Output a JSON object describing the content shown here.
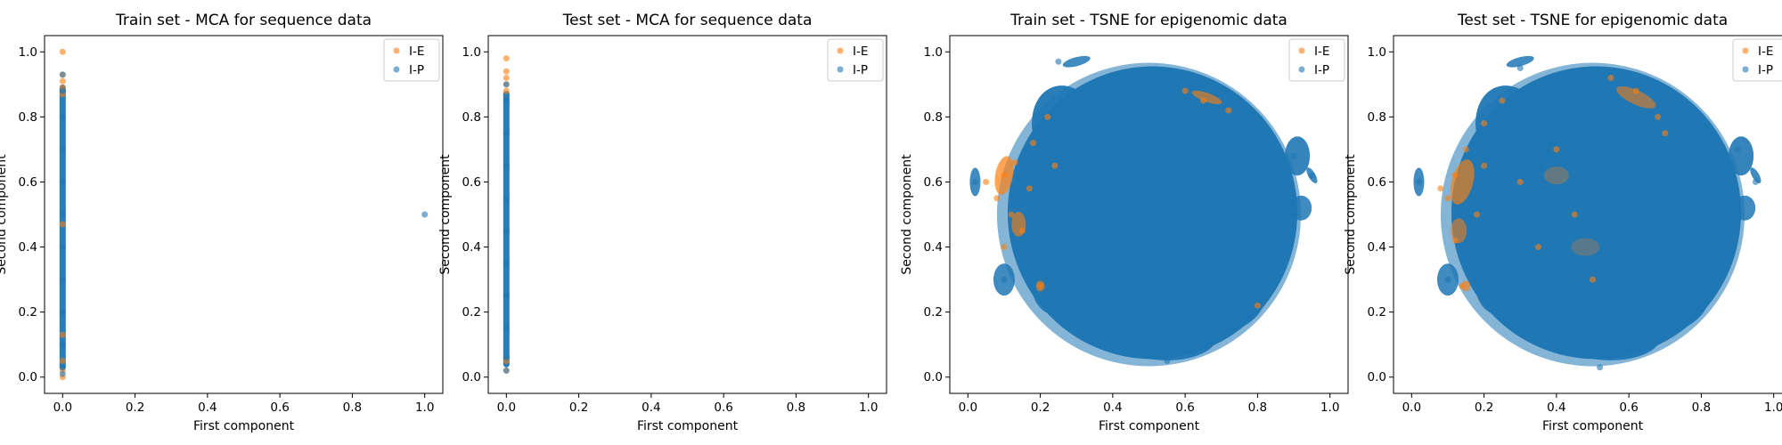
{
  "colors": {
    "I-E": "#ff7f0e",
    "I-P": "#1f77b4"
  },
  "chart_data": [
    {
      "type": "scatter",
      "title": "Train set - MCA for sequence data",
      "xlabel": "First component",
      "ylabel": "Second component",
      "xlim": [
        -0.05,
        1.05
      ],
      "ylim": [
        -0.05,
        1.05
      ],
      "xticks": [
        "0.0",
        "0.2",
        "0.4",
        "0.6",
        "0.8",
        "1.0"
      ],
      "yticks": [
        "0.0",
        "0.2",
        "0.4",
        "0.6",
        "0.8",
        "1.0"
      ],
      "legend": "top-right",
      "series": [
        {
          "name": "I-E",
          "color": "#ff7f0e",
          "points": [
            [
              0.0,
              1.0
            ],
            [
              0.0,
              0.93
            ],
            [
              0.0,
              0.91
            ],
            [
              0.0,
              0.89
            ],
            [
              0.0,
              0.87
            ],
            [
              0.0,
              0.47
            ],
            [
              0.0,
              0.13
            ],
            [
              0.0,
              0.05
            ],
            [
              0.0,
              0.02
            ],
            [
              0.0,
              0.0
            ]
          ]
        },
        {
          "name": "I-P",
          "color": "#1f77b4",
          "points": [
            [
              0.0,
              0.93
            ],
            [
              0.0,
              0.88
            ],
            [
              0.0,
              0.8
            ],
            [
              0.0,
              0.7
            ],
            [
              0.0,
              0.6
            ],
            [
              0.0,
              0.5
            ],
            [
              0.0,
              0.4
            ],
            [
              0.0,
              0.3
            ],
            [
              0.0,
              0.2
            ],
            [
              0.0,
              0.1
            ],
            [
              0.0,
              0.03
            ],
            [
              0.0,
              0.01
            ],
            [
              1.0,
              0.5
            ]
          ]
        }
      ]
    },
    {
      "type": "scatter",
      "title": "Test set - MCA for sequence data",
      "xlabel": "First component",
      "ylabel": "Second component",
      "xlim": [
        -0.05,
        1.05
      ],
      "ylim": [
        -0.05,
        1.05
      ],
      "xticks": [
        "0.0",
        "0.2",
        "0.4",
        "0.6",
        "0.8",
        "1.0"
      ],
      "yticks": [
        "0.0",
        "0.2",
        "0.4",
        "0.6",
        "0.8",
        "1.0"
      ],
      "legend": "top-right",
      "series": [
        {
          "name": "I-E",
          "color": "#ff7f0e",
          "points": [
            [
              0.0,
              0.98
            ],
            [
              0.0,
              0.94
            ],
            [
              0.0,
              0.92
            ],
            [
              0.0,
              0.9
            ],
            [
              0.0,
              0.88
            ],
            [
              0.0,
              0.05
            ],
            [
              0.0,
              0.02
            ]
          ]
        },
        {
          "name": "I-P",
          "color": "#1f77b4",
          "points": [
            [
              0.0,
              0.9
            ],
            [
              0.0,
              0.85
            ],
            [
              0.0,
              0.75
            ],
            [
              0.0,
              0.65
            ],
            [
              0.0,
              0.55
            ],
            [
              0.0,
              0.45
            ],
            [
              0.0,
              0.35
            ],
            [
              0.0,
              0.25
            ],
            [
              0.0,
              0.15
            ],
            [
              0.0,
              0.06
            ],
            [
              0.0,
              0.02
            ]
          ]
        }
      ]
    },
    {
      "type": "scatter",
      "title": "Train set - TSNE for epigenomic data",
      "xlabel": "First component",
      "ylabel": "Second component",
      "xlim": [
        -0.05,
        1.05
      ],
      "ylim": [
        -0.05,
        1.05
      ],
      "xticks": [
        "0.0",
        "0.2",
        "0.4",
        "0.6",
        "0.8",
        "1.0"
      ],
      "yticks": [
        "0.0",
        "0.2",
        "0.4",
        "0.6",
        "0.8",
        "1.0"
      ],
      "legend": "top-right",
      "series": [
        {
          "name": "I-E",
          "color": "#ff7f0e",
          "points": [
            [
              0.1,
              0.62
            ],
            [
              0.13,
              0.66
            ],
            [
              0.08,
              0.55
            ],
            [
              0.12,
              0.5
            ],
            [
              0.18,
              0.72
            ],
            [
              0.22,
              0.8
            ],
            [
              0.15,
              0.45
            ],
            [
              0.1,
              0.4
            ],
            [
              0.2,
              0.28
            ],
            [
              0.6,
              0.88
            ],
            [
              0.65,
              0.85
            ],
            [
              0.72,
              0.82
            ],
            [
              0.8,
              0.22
            ],
            [
              0.05,
              0.6
            ],
            [
              0.17,
              0.58
            ],
            [
              0.24,
              0.65
            ]
          ]
        },
        {
          "name": "I-P",
          "color": "#1f77b4",
          "points": [
            [
              0.5,
              0.55
            ],
            [
              0.35,
              0.8
            ],
            [
              0.6,
              0.9
            ],
            [
              0.75,
              0.6
            ],
            [
              0.4,
              0.2
            ],
            [
              0.55,
              0.05
            ],
            [
              0.25,
              0.3
            ],
            [
              0.85,
              0.4
            ],
            [
              0.9,
              0.68
            ],
            [
              0.02,
              0.6
            ],
            [
              0.1,
              0.3
            ],
            [
              0.25,
              0.97
            ],
            [
              0.95,
              0.62
            ]
          ]
        }
      ]
    },
    {
      "type": "scatter",
      "title": "Test set - TSNE for epigenomic data",
      "xlabel": "First component",
      "ylabel": "Second component",
      "xlim": [
        -0.05,
        1.05
      ],
      "ylim": [
        -0.05,
        1.05
      ],
      "xticks": [
        "0.0",
        "0.2",
        "0.4",
        "0.6",
        "0.8",
        "1.0"
      ],
      "yticks": [
        "0.0",
        "0.2",
        "0.4",
        "0.6",
        "0.8",
        "1.0"
      ],
      "legend": "top-right",
      "series": [
        {
          "name": "I-E",
          "color": "#ff7f0e",
          "points": [
            [
              0.12,
              0.62
            ],
            [
              0.15,
              0.7
            ],
            [
              0.1,
              0.55
            ],
            [
              0.18,
              0.5
            ],
            [
              0.2,
              0.78
            ],
            [
              0.25,
              0.85
            ],
            [
              0.12,
              0.42
            ],
            [
              0.14,
              0.28
            ],
            [
              0.55,
              0.92
            ],
            [
              0.62,
              0.88
            ],
            [
              0.68,
              0.8
            ],
            [
              0.4,
              0.7
            ],
            [
              0.3,
              0.6
            ],
            [
              0.45,
              0.5
            ],
            [
              0.35,
              0.4
            ],
            [
              0.5,
              0.3
            ],
            [
              0.7,
              0.75
            ],
            [
              0.08,
              0.58
            ],
            [
              0.2,
              0.65
            ]
          ]
        },
        {
          "name": "I-P",
          "color": "#1f77b4",
          "points": [
            [
              0.5,
              0.55
            ],
            [
              0.35,
              0.8
            ],
            [
              0.6,
              0.9
            ],
            [
              0.75,
              0.6
            ],
            [
              0.4,
              0.2
            ],
            [
              0.52,
              0.03
            ],
            [
              0.25,
              0.3
            ],
            [
              0.85,
              0.4
            ],
            [
              0.9,
              0.7
            ],
            [
              0.02,
              0.6
            ],
            [
              0.1,
              0.3
            ],
            [
              0.3,
              0.95
            ],
            [
              0.95,
              0.6
            ]
          ]
        }
      ]
    }
  ]
}
